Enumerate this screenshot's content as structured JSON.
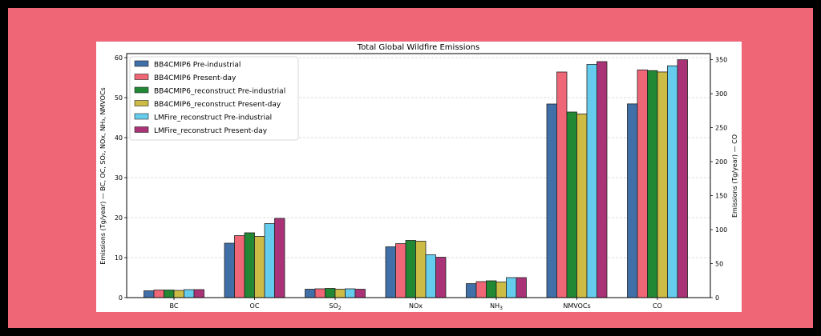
{
  "colors": {
    "background_frame": "#ef6677",
    "background_outer": "#000000"
  },
  "chart_data": {
    "type": "bar",
    "title": "Total Global Wildfire Emissions",
    "ylabel_left": "Emissions (Tg/year) — BC, OC, SO₂, NOx, NH₃, NMVOCs",
    "ylabel_right": "Emissions (Tg/year) — CO",
    "categories": [
      "BC",
      "OC",
      "SO2",
      "NOx",
      "NH3",
      "NMVOCs",
      "CO"
    ],
    "category_labels": [
      {
        "text": "BC",
        "sub": ""
      },
      {
        "text": "OC",
        "sub": ""
      },
      {
        "text": "SO",
        "sub": "2"
      },
      {
        "text": "NOx",
        "sub": ""
      },
      {
        "text": "NH",
        "sub": "3"
      },
      {
        "text": "NMVOCs",
        "sub": ""
      },
      {
        "text": "CO",
        "sub": ""
      }
    ],
    "ylim_left": [
      0,
      61
    ],
    "ylim_right": [
      0,
      359
    ],
    "yticks_left": [
      0,
      10,
      20,
      30,
      40,
      50,
      60
    ],
    "yticks_right": [
      0,
      50,
      100,
      150,
      200,
      250,
      300,
      350
    ],
    "right_axis_categories": [
      "CO"
    ],
    "grid": true,
    "legend_position": "top-left",
    "series": [
      {
        "name": "BB4CMIP6 Pre-industrial",
        "color": "#4170a8",
        "values": [
          1.7,
          13.6,
          2.1,
          12.7,
          3.5,
          48.4,
          285
        ]
      },
      {
        "name": "BB4CMIP6 Present-day",
        "color": "#ef6677",
        "values": [
          1.9,
          15.5,
          2.2,
          13.5,
          4.0,
          56.4,
          335
        ]
      },
      {
        "name": "BB4CMIP6_reconstruct Pre-industrial",
        "color": "#228833",
        "values": [
          1.9,
          16.2,
          2.3,
          14.3,
          4.2,
          46.4,
          334
        ]
      },
      {
        "name": "BB4CMIP6_reconstruct Present-day",
        "color": "#ccbb44",
        "values": [
          1.8,
          15.3,
          2.1,
          14.1,
          3.9,
          45.9,
          332
        ]
      },
      {
        "name": "LMFire_reconstruct Pre-industrial",
        "color": "#66ccee",
        "values": [
          2.0,
          18.5,
          2.2,
          10.7,
          5.0,
          58.3,
          341
        ]
      },
      {
        "name": "LMFire_reconstruct Present-day",
        "color": "#aa3377",
        "values": [
          2.0,
          19.8,
          2.1,
          10.1,
          5.0,
          59.0,
          350
        ]
      }
    ]
  }
}
